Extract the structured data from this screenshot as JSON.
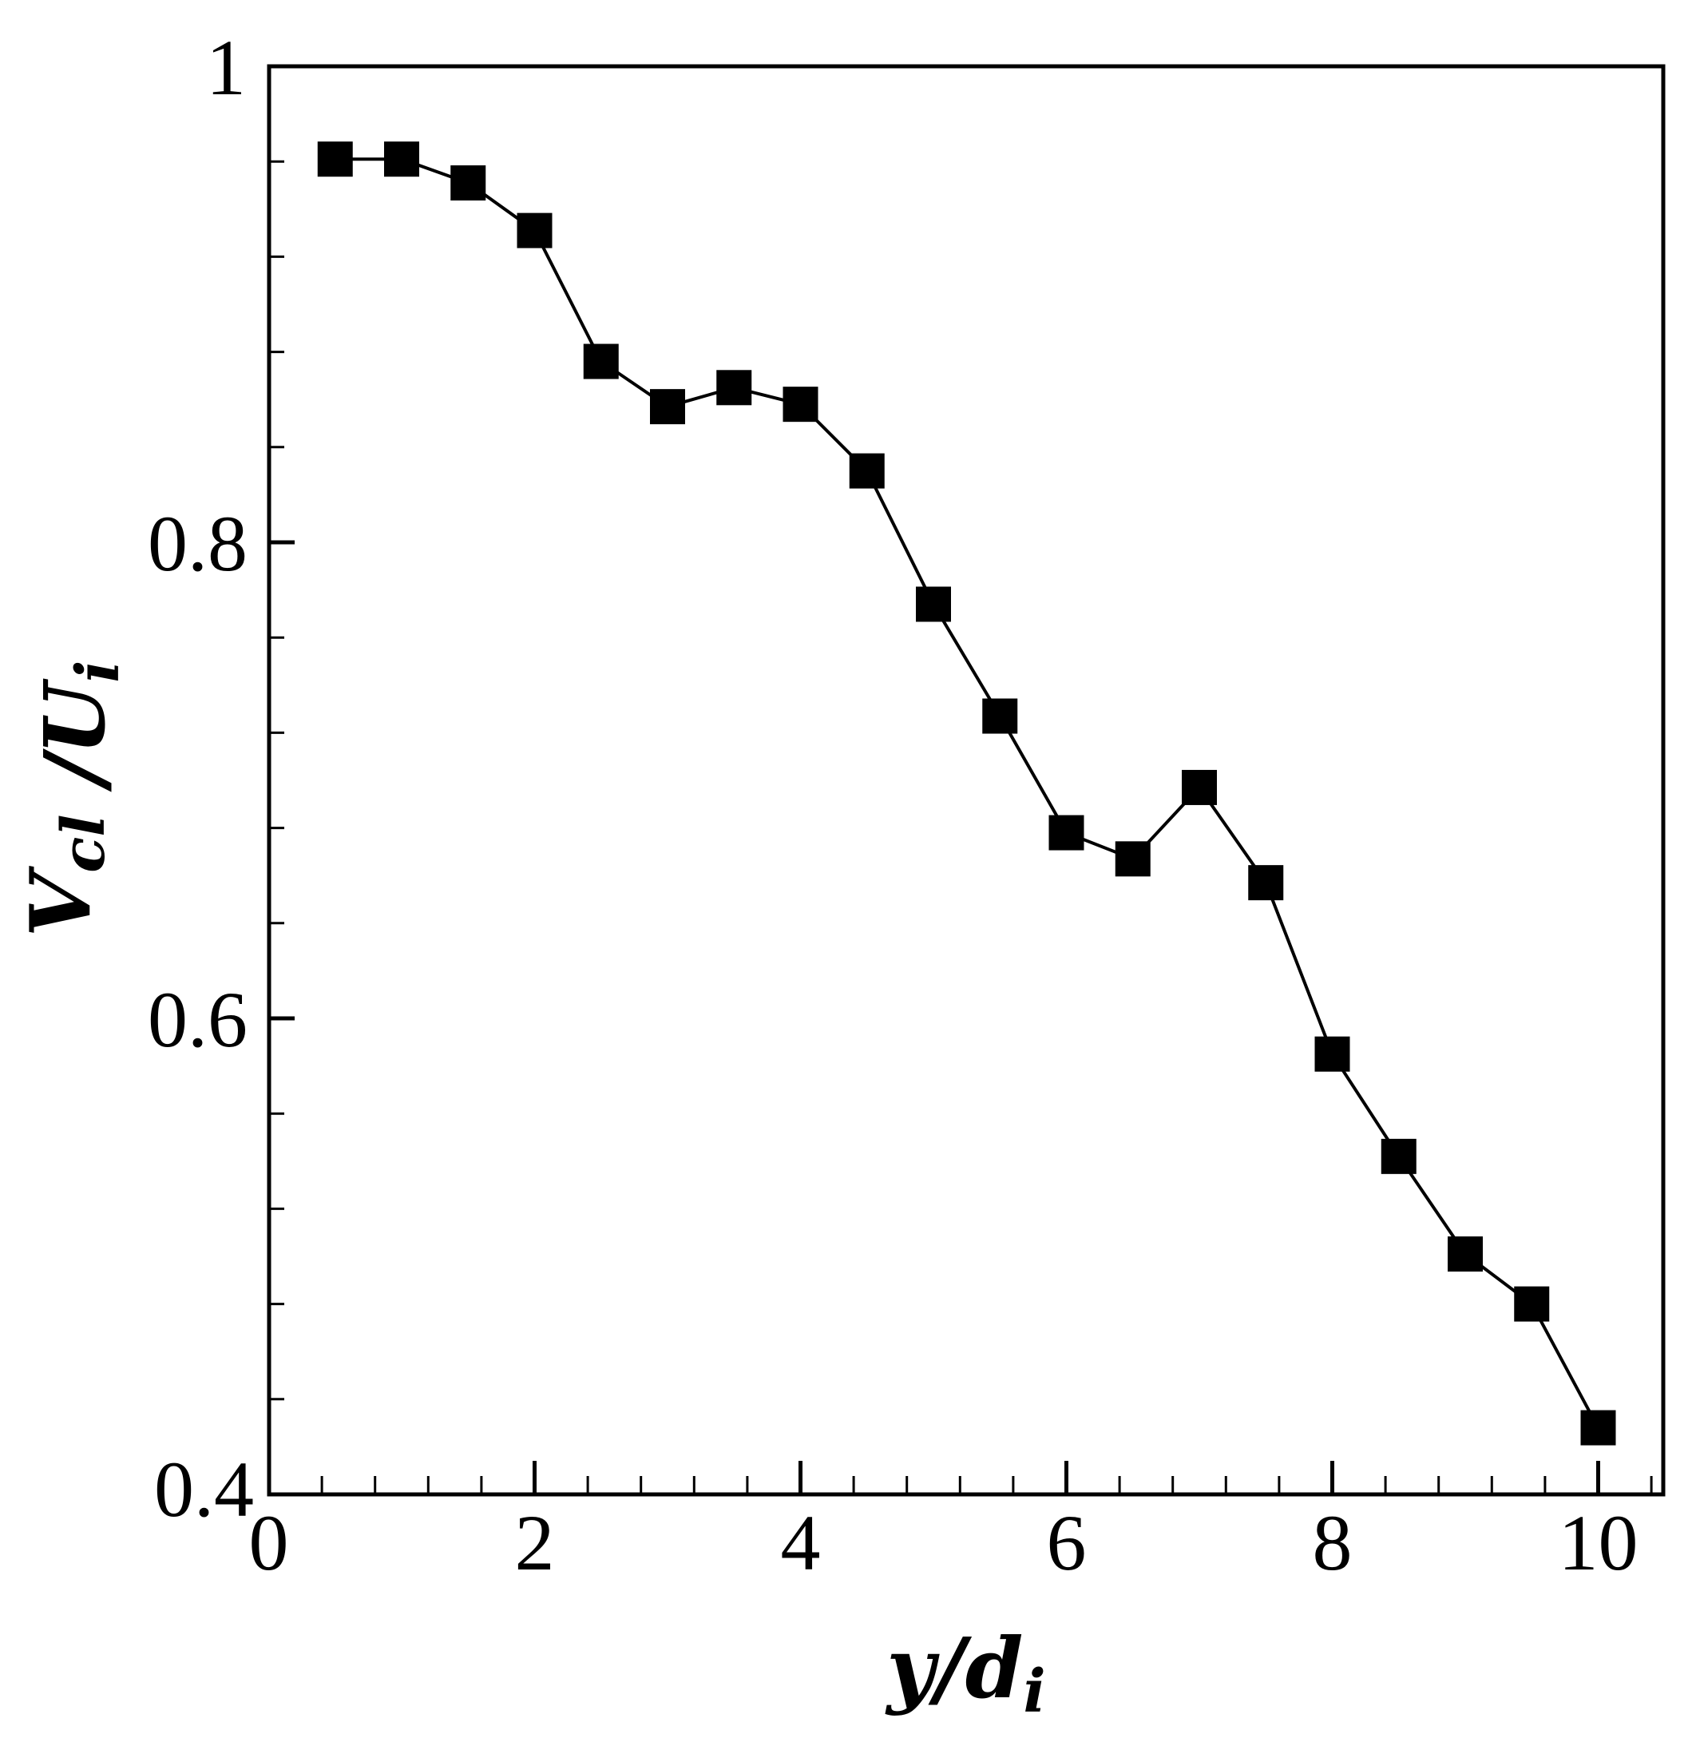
{
  "chart_data": {
    "type": "line",
    "title": "",
    "xlabel": "y/d_i",
    "ylabel": "V_cl /U_i",
    "xlabel_parts": {
      "main": "y/d",
      "sub": "i"
    },
    "ylabel_parts": [
      {
        "main": "V",
        "sub": "cl"
      },
      {
        "main": " /U",
        "sub": "i"
      }
    ],
    "xlim": [
      0,
      10.5
    ],
    "ylim": [
      0.4,
      1.0
    ],
    "x_ticks": [
      0,
      2,
      4,
      6,
      8,
      10
    ],
    "x_tick_labels": [
      "0",
      "2",
      "4",
      "6",
      "8",
      "10"
    ],
    "x_minor_step": 0.4,
    "y_ticks": [
      0.4,
      0.6,
      0.8,
      1.0
    ],
    "y_tick_labels": [
      "0.4",
      "0.6",
      "0.8",
      "1"
    ],
    "y_minor_step": 0.04,
    "grid": false,
    "legend": null,
    "marker": "filled-square",
    "line_color": "#000000",
    "marker_color": "#000000",
    "series": [
      {
        "name": "V_cl/U_i",
        "x": [
          0.5,
          1.0,
          1.5,
          2.0,
          2.5,
          3.0,
          3.5,
          4.0,
          4.5,
          5.0,
          5.5,
          6.0,
          6.5,
          7.0,
          7.5,
          8.0,
          8.5,
          9.0,
          9.5,
          10.0
        ],
        "values": [
          0.961,
          0.961,
          0.951,
          0.931,
          0.876,
          0.857,
          0.865,
          0.858,
          0.83,
          0.774,
          0.727,
          0.678,
          0.667,
          0.697,
          0.657,
          0.585,
          0.542,
          0.501,
          0.48,
          0.428
        ]
      }
    ]
  }
}
